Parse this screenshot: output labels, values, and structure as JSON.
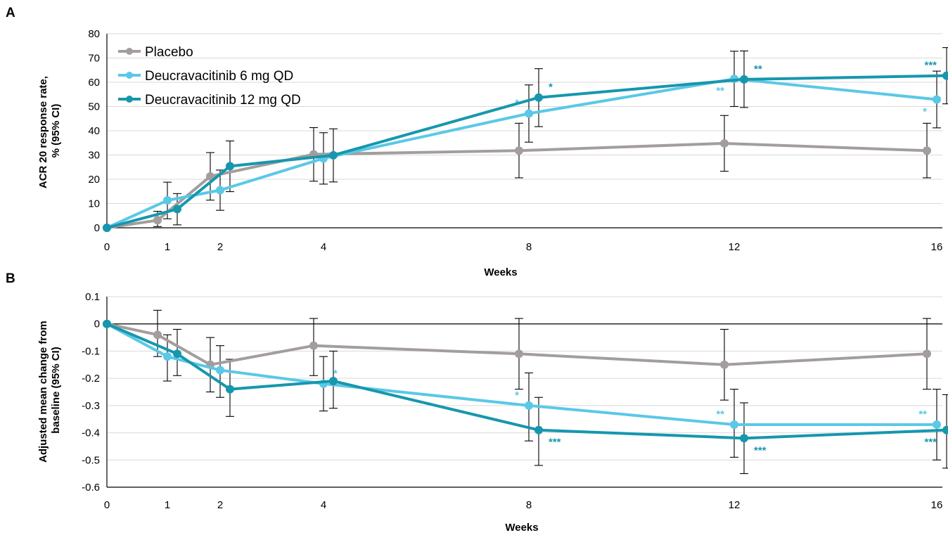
{
  "chart_data": [
    {
      "panel": "A",
      "type": "line",
      "ylabel": [
        "ACR 20 response rate,",
        "% (95% CI)"
      ],
      "xlabel": "Weeks",
      "ylim": [
        0,
        80
      ],
      "yticks": [
        0,
        10,
        20,
        30,
        40,
        50,
        60,
        70,
        80
      ],
      "xticks": [
        0,
        1,
        2,
        4,
        8,
        12,
        16
      ],
      "legend": "top-left",
      "grid": true,
      "series": [
        {
          "name": "Placebo",
          "color": "#a39d9e",
          "points": [
            {
              "x": 0,
              "y": 0,
              "lo": null,
              "hi": null,
              "sig": ""
            },
            {
              "x": 1,
              "y": 3.1,
              "lo": 0.5,
              "hi": 6.8,
              "sig": ""
            },
            {
              "x": 2,
              "y": 21.2,
              "lo": 11.4,
              "hi": 31.0,
              "sig": ""
            },
            {
              "x": 4,
              "y": 30.3,
              "lo": 19.2,
              "hi": 41.3,
              "sig": ""
            },
            {
              "x": 8,
              "y": 31.8,
              "lo": 20.6,
              "hi": 43.1,
              "sig": ""
            },
            {
              "x": 12,
              "y": 34.8,
              "lo": 23.3,
              "hi": 46.3,
              "sig": ""
            },
            {
              "x": 16,
              "y": 31.8,
              "lo": 20.6,
              "hi": 43.1,
              "sig": ""
            }
          ]
        },
        {
          "name": "Deucravacitinib 6 mg QD",
          "color": "#5bc8e6",
          "points": [
            {
              "x": 0,
              "y": 0,
              "lo": null,
              "hi": null,
              "sig": ""
            },
            {
              "x": 1,
              "y": 11.3,
              "lo": 3.7,
              "hi": 18.8,
              "sig": ""
            },
            {
              "x": 2,
              "y": 15.5,
              "lo": 7.2,
              "hi": 23.8,
              "sig": ""
            },
            {
              "x": 4,
              "y": 28.6,
              "lo": 18.0,
              "hi": 39.2,
              "sig": ""
            },
            {
              "x": 8,
              "y": 47.1,
              "lo": 35.3,
              "hi": 58.9,
              "sig": "*"
            },
            {
              "x": 12,
              "y": 61.4,
              "lo": 50.0,
              "hi": 72.8,
              "sig": "**"
            },
            {
              "x": 16,
              "y": 52.9,
              "lo": 41.2,
              "hi": 64.6,
              "sig": "*"
            }
          ]
        },
        {
          "name": "Deucravacitinib 12 mg QD",
          "color": "#1697ad",
          "points": [
            {
              "x": 0,
              "y": 0,
              "lo": null,
              "hi": null,
              "sig": ""
            },
            {
              "x": 1,
              "y": 7.7,
              "lo": 1.2,
              "hi": 14.1,
              "sig": ""
            },
            {
              "x": 2,
              "y": 25.4,
              "lo": 14.9,
              "hi": 35.8,
              "sig": ""
            },
            {
              "x": 4,
              "y": 29.9,
              "lo": 18.9,
              "hi": 40.8,
              "sig": ""
            },
            {
              "x": 8,
              "y": 53.7,
              "lo": 41.7,
              "hi": 65.6,
              "sig": "*"
            },
            {
              "x": 12,
              "y": 61.2,
              "lo": 49.6,
              "hi": 72.9,
              "sig": "**"
            },
            {
              "x": 16,
              "y": 62.7,
              "lo": 51.1,
              "hi": 74.3,
              "sig": "***"
            }
          ]
        }
      ]
    },
    {
      "panel": "B",
      "type": "line",
      "ylabel": [
        "Adjusted mean change from",
        "baseline (95% CI)"
      ],
      "xlabel": "Weeks",
      "ylim": [
        -0.6,
        0.1
      ],
      "yticks": [
        -0.6,
        -0.5,
        -0.4,
        -0.3,
        -0.2,
        -0.1,
        0,
        0.1
      ],
      "ytick_labels": [
        "-0.6",
        "-0.5",
        "-0.4",
        "-0.3",
        "-0.2",
        "-0.1",
        "0",
        "0.1"
      ],
      "xticks": [
        0,
        1,
        2,
        4,
        8,
        12,
        16
      ],
      "grid": true,
      "series": [
        {
          "name": "Placebo",
          "color": "#a39d9e",
          "points": [
            {
              "x": 0,
              "y": 0,
              "lo": null,
              "hi": null,
              "sig": ""
            },
            {
              "x": 1,
              "y": -0.04,
              "lo": -0.12,
              "hi": 0.05,
              "sig": ""
            },
            {
              "x": 2,
              "y": -0.15,
              "lo": -0.25,
              "hi": -0.05,
              "sig": ""
            },
            {
              "x": 4,
              "y": -0.08,
              "lo": -0.19,
              "hi": 0.02,
              "sig": ""
            },
            {
              "x": 8,
              "y": -0.11,
              "lo": -0.24,
              "hi": 0.02,
              "sig": ""
            },
            {
              "x": 12,
              "y": -0.15,
              "lo": -0.28,
              "hi": -0.02,
              "sig": ""
            },
            {
              "x": 16,
              "y": -0.11,
              "lo": -0.24,
              "hi": 0.02,
              "sig": ""
            }
          ]
        },
        {
          "name": "Deucravacitinib 6 mg QD",
          "color": "#5bc8e6",
          "points": [
            {
              "x": 0,
              "y": 0,
              "lo": null,
              "hi": null,
              "sig": ""
            },
            {
              "x": 1,
              "y": -0.12,
              "lo": -0.21,
              "hi": -0.04,
              "sig": ""
            },
            {
              "x": 2,
              "y": -0.17,
              "lo": -0.27,
              "hi": -0.08,
              "sig": ""
            },
            {
              "x": 4,
              "y": -0.22,
              "lo": -0.32,
              "hi": -0.12,
              "sig": "*"
            },
            {
              "x": 8,
              "y": -0.3,
              "lo": -0.43,
              "hi": -0.18,
              "sig": "*"
            },
            {
              "x": 12,
              "y": -0.37,
              "lo": -0.49,
              "hi": -0.24,
              "sig": "**"
            },
            {
              "x": 16,
              "y": -0.37,
              "lo": -0.5,
              "hi": -0.24,
              "sig": "**"
            }
          ]
        },
        {
          "name": "Deucravacitinib 12 mg QD",
          "color": "#1697ad",
          "points": [
            {
              "x": 0,
              "y": 0,
              "lo": null,
              "hi": null,
              "sig": ""
            },
            {
              "x": 1,
              "y": -0.11,
              "lo": -0.19,
              "hi": -0.02,
              "sig": ""
            },
            {
              "x": 2,
              "y": -0.24,
              "lo": -0.34,
              "hi": -0.13,
              "sig": ""
            },
            {
              "x": 4,
              "y": -0.21,
              "lo": -0.31,
              "hi": -0.1,
              "sig": ""
            },
            {
              "x": 8,
              "y": -0.39,
              "lo": -0.52,
              "hi": -0.27,
              "sig": "***"
            },
            {
              "x": 12,
              "y": -0.42,
              "lo": -0.55,
              "hi": -0.29,
              "sig": "***"
            },
            {
              "x": 16,
              "y": -0.39,
              "lo": -0.53,
              "hi": -0.26,
              "sig": "***"
            }
          ]
        }
      ]
    }
  ]
}
